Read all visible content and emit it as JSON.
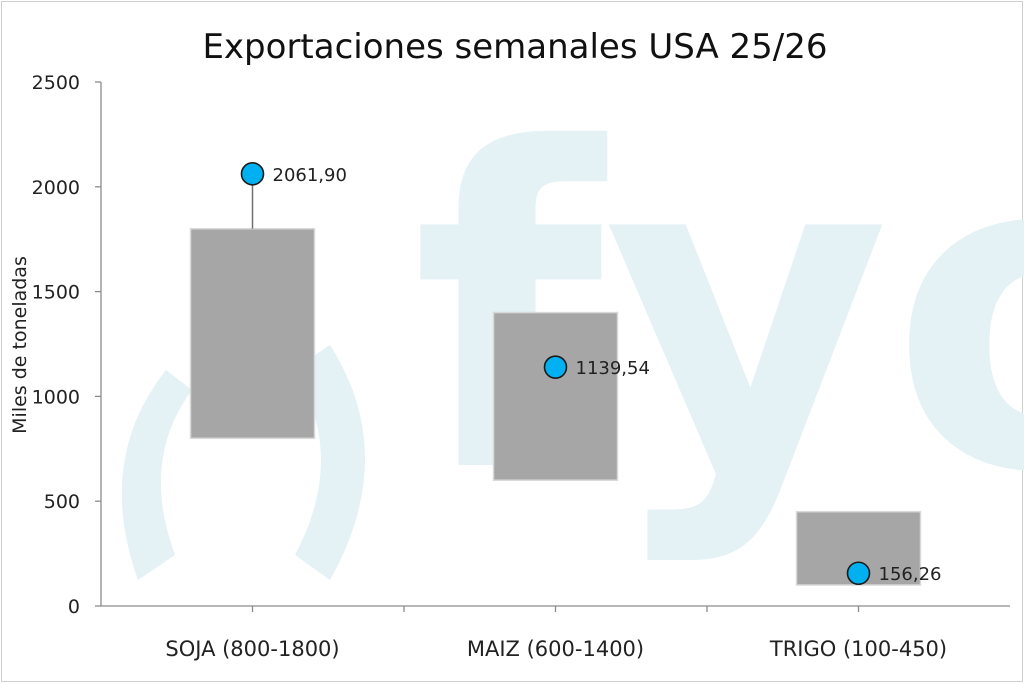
{
  "chart_data": {
    "type": "bar",
    "title": "Exportaciones semanales USA 25/26",
    "xlabel": "",
    "ylabel": "Miles de toneladas",
    "ylim": [
      0,
      2500
    ],
    "yticks": [
      0,
      500,
      1000,
      1500,
      2000,
      2500
    ],
    "categories": [
      "SOJA (800-1800)",
      "MAIZ (600-1400)",
      "TRIGO (100-450)"
    ],
    "series": [
      {
        "kind": "range",
        "low": [
          800,
          600,
          100
        ],
        "high": [
          1800,
          1400,
          450
        ],
        "color": "#a6a6a6"
      },
      {
        "kind": "marker",
        "values": [
          2061.9,
          1139.54,
          156.26
        ],
        "labels": [
          "2061,90",
          "1139,54",
          "156,26"
        ],
        "color": "#00b0f0"
      }
    ],
    "grid": false,
    "watermark": "fyo"
  }
}
